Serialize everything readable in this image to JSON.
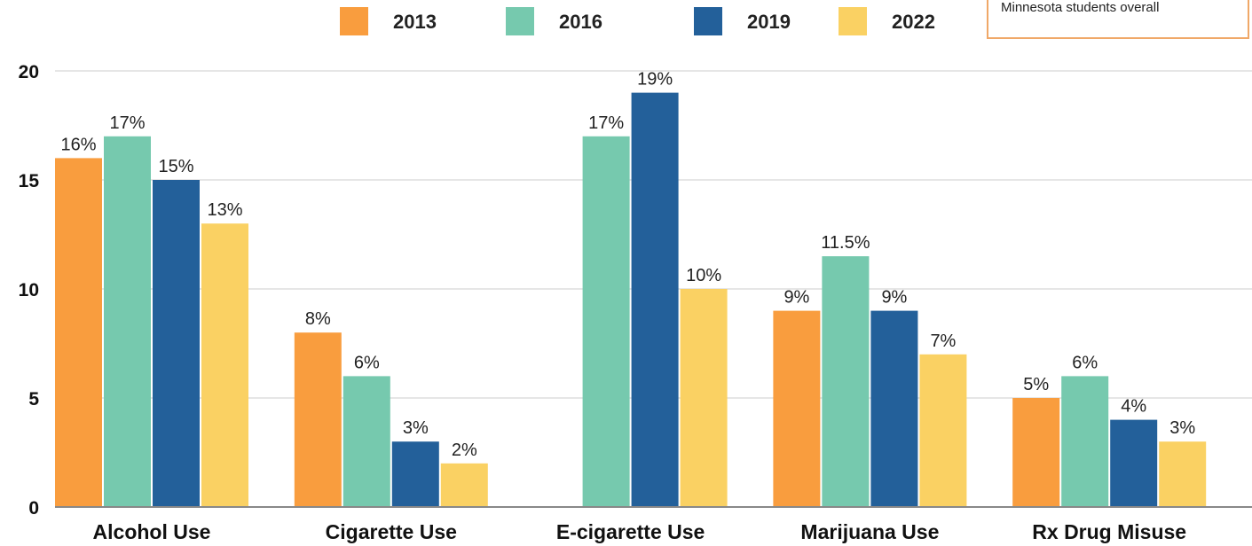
{
  "note": {
    "text": "Minnesota students overall"
  },
  "colors": {
    "2013": "#f99d3e",
    "2016": "#76c9ae",
    "2019": "#23609a",
    "2022": "#fad163",
    "grid": "#cccccc",
    "axis": "#888888"
  },
  "chart_data": {
    "type": "bar",
    "title": "",
    "xlabel": "",
    "ylabel": "",
    "ylim": [
      0,
      20
    ],
    "yticks": [
      0,
      5,
      10,
      15,
      20
    ],
    "grid": true,
    "legend_position": "top",
    "categories": [
      "Alcohol Use",
      "Cigarette Use",
      "E-cigarette Use",
      "Marijuana Use",
      "Rx Drug Misuse"
    ],
    "series": [
      {
        "name": "2013",
        "color": "#f99d3e",
        "values": [
          16,
          8,
          null,
          9,
          5
        ],
        "labels": [
          "16%",
          "8%",
          "",
          "9%",
          "5%"
        ]
      },
      {
        "name": "2016",
        "color": "#76c9ae",
        "values": [
          17,
          6,
          17,
          11.5,
          6
        ],
        "labels": [
          "17%",
          "6%",
          "17%",
          "11.5%",
          "6%"
        ]
      },
      {
        "name": "2019",
        "color": "#23609a",
        "values": [
          15,
          3,
          19,
          9,
          4
        ],
        "labels": [
          "15%",
          "3%",
          "19%",
          "9%",
          "4%"
        ]
      },
      {
        "name": "2022",
        "color": "#fad163",
        "values": [
          13,
          2,
          10,
          7,
          3
        ],
        "labels": [
          "13%",
          "2%",
          "10%",
          "7%",
          "3%"
        ]
      }
    ]
  }
}
